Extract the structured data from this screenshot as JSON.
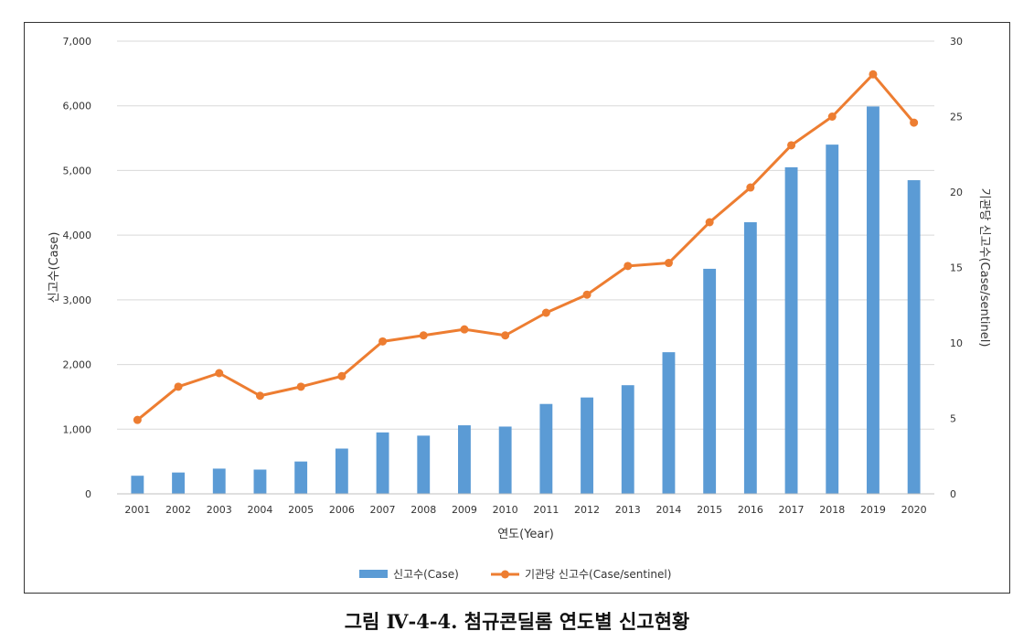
{
  "chart_data": {
    "type": "bar",
    "categories": [
      "2001",
      "2002",
      "2003",
      "2004",
      "2005",
      "2006",
      "2007",
      "2008",
      "2009",
      "2010",
      "2011",
      "2012",
      "2013",
      "2014",
      "2015",
      "2016",
      "2017",
      "2018",
      "2019",
      "2020"
    ],
    "series": [
      {
        "name": "신고수(Case)",
        "type": "bar",
        "axis": "left",
        "color": "#5b9bd5",
        "values": [
          280,
          330,
          390,
          375,
          500,
          700,
          950,
          900,
          1060,
          1040,
          1390,
          1490,
          1680,
          2190,
          3480,
          4200,
          5050,
          5400,
          5990,
          4850
        ]
      },
      {
        "name": "기관당 신고수(Case/sentinel)",
        "type": "line",
        "axis": "right",
        "color": "#ed7d31",
        "values": [
          4.9,
          7.1,
          8.0,
          6.5,
          7.1,
          7.8,
          10.1,
          10.5,
          10.9,
          10.5,
          12.0,
          13.2,
          15.1,
          15.3,
          18.0,
          20.3,
          23.1,
          25.0,
          27.8,
          24.6
        ]
      }
    ],
    "xlabel": "연도(Year)",
    "ylabel": "신고수(Case)",
    "ylabel_right": "기관당 신고수(Case/sentinel)",
    "ylim": [
      0,
      7000
    ],
    "ylim_right": [
      0,
      30
    ],
    "yticks": [
      "0",
      "1,000",
      "2,000",
      "3,000",
      "4,000",
      "5,000",
      "6,000",
      "7,000"
    ],
    "yticks_right": [
      "0",
      "5",
      "10",
      "15",
      "20",
      "25",
      "30"
    ],
    "grid": true,
    "legend": "bottom"
  },
  "caption": "그림 Ⅳ-4-4. 첨규콘딜롬 연도별 신고현황"
}
